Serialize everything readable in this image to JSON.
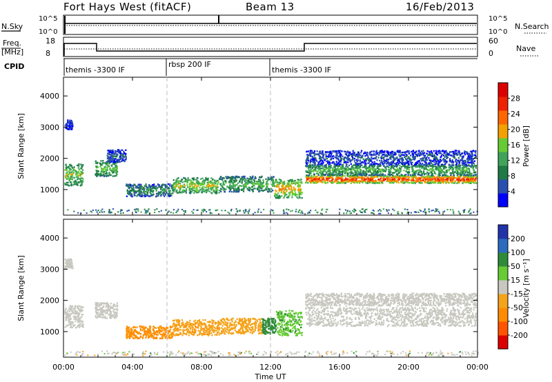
{
  "header": {
    "title": "Fort Hays West (fitACF)",
    "beam": "Beam 13",
    "date": "16/Feb/2013"
  },
  "status_panels": {
    "nsky_label": "N.Sky",
    "nsearch_label": "N.Search",
    "freq_label_top": "Freq.",
    "freq_label_unit": "[MHz]",
    "nave_label": "Nave",
    "cpid_label": "CPID",
    "noise_ticks_left": [
      "10^5",
      "10^0"
    ],
    "noise_ticks_right": [
      "10^5",
      "10^0"
    ],
    "freq_ticks": [
      "18",
      "8"
    ],
    "nave_ticks": [
      "60",
      "0"
    ]
  },
  "cpid_segments": [
    {
      "label": "themis -3300 IF",
      "start_hr": 0
    },
    {
      "label": "rbsp 200 IF",
      "start_hr": 6
    },
    {
      "label": "themis -3300 IF",
      "start_hr": 12
    }
  ],
  "axes": {
    "ylabel": "Slant Range [km]",
    "xlabel": "Time UT",
    "x_ticks": [
      "00:00",
      "04:00",
      "08:00",
      "12:00",
      "16:00",
      "20:00",
      "00:00"
    ],
    "x_tick_hours": [
      0,
      4,
      8,
      12,
      16,
      20,
      24
    ],
    "y_ticks": [
      1000,
      2000,
      3000,
      4000
    ],
    "xlim": [
      0,
      24
    ],
    "ylim": [
      180,
      4600
    ]
  },
  "colors": {
    "power": [
      "#0000ff",
      "#2b4fb0",
      "#1e7a46",
      "#3fa35a",
      "#66cc33",
      "#f2a100",
      "#ff6600",
      "#ee2200",
      "#dd0000"
    ],
    "velocity": [
      "#dd0000",
      "#ff5500",
      "#ff8c00",
      "#f5a31a",
      "#c8c8c0",
      "#66cc33",
      "#2e8b3a",
      "#2b6cbf",
      "#2233aa"
    ]
  },
  "chart_data": [
    {
      "type": "heatmap",
      "name": "Power",
      "colorbar_label": "Power [dB]",
      "colorbar_ticks": [
        "4",
        "8",
        "12",
        "16",
        "20",
        "24",
        "28"
      ],
      "colorbar_range": [
        0,
        32
      ],
      "regions": [
        {
          "t0": 0.05,
          "t1": 1.1,
          "r_center": 1500,
          "r_width": 700,
          "val": 17
        },
        {
          "t0": 0.05,
          "t1": 0.5,
          "r_center": 3100,
          "r_width": 300,
          "val": 4
        },
        {
          "t0": 1.8,
          "t1": 3.1,
          "r_center": 1700,
          "r_width": 500,
          "val": 15
        },
        {
          "t0": 2.5,
          "t1": 3.6,
          "r_center": 2100,
          "r_width": 400,
          "val": 6
        },
        {
          "t0": 3.6,
          "t1": 6.3,
          "r_center": 1000,
          "r_width": 400,
          "val": 10
        },
        {
          "t0": 6.3,
          "t1": 9.0,
          "r_center": 1150,
          "r_width": 500,
          "val": 18
        },
        {
          "t0": 9.0,
          "t1": 12.2,
          "r_center": 1200,
          "r_width": 500,
          "val": 14
        },
        {
          "t0": 12.2,
          "t1": 13.8,
          "r_center": 1050,
          "r_width": 600,
          "val": 21
        },
        {
          "t0": 14.0,
          "t1": 23.9,
          "r_center": 1350,
          "r_width": 250,
          "val": 27
        },
        {
          "t0": 14.0,
          "t1": 23.9,
          "r_center": 1650,
          "r_width": 350,
          "val": 14
        },
        {
          "t0": 14.0,
          "t1": 23.9,
          "r_center": 2050,
          "r_width": 450,
          "val": 6
        }
      ]
    },
    {
      "type": "heatmap",
      "name": "Velocity",
      "colorbar_label": "Velocity [m s⁻¹]",
      "colorbar_ticks": [
        "-200",
        "-100",
        "-50",
        "-15",
        "15",
        "50",
        "100",
        "200"
      ],
      "regions": [
        {
          "t0": 0.05,
          "t1": 1.1,
          "r_center": 1500,
          "r_width": 700,
          "val": 0
        },
        {
          "t0": 0.05,
          "t1": 0.5,
          "r_center": 3200,
          "r_width": 300,
          "val": 0
        },
        {
          "t0": 1.8,
          "t1": 3.1,
          "r_center": 1700,
          "r_width": 500,
          "val": 0
        },
        {
          "t0": 3.6,
          "t1": 6.3,
          "r_center": 1000,
          "r_width": 400,
          "val": -60
        },
        {
          "t0": 6.3,
          "t1": 9.0,
          "r_center": 1150,
          "r_width": 500,
          "val": -40
        },
        {
          "t0": 9.0,
          "t1": 11.5,
          "r_center": 1200,
          "r_width": 500,
          "val": -30
        },
        {
          "t0": 11.5,
          "t1": 12.3,
          "r_center": 1200,
          "r_width": 500,
          "val": 80
        },
        {
          "t0": 12.3,
          "t1": 13.8,
          "r_center": 1300,
          "r_width": 800,
          "val": 40
        },
        {
          "t0": 14.0,
          "t1": 23.9,
          "r_center": 1500,
          "r_width": 600,
          "val": 0
        },
        {
          "t0": 14.0,
          "t1": 23.9,
          "r_center": 2050,
          "r_width": 400,
          "val": 0
        }
      ]
    }
  ]
}
